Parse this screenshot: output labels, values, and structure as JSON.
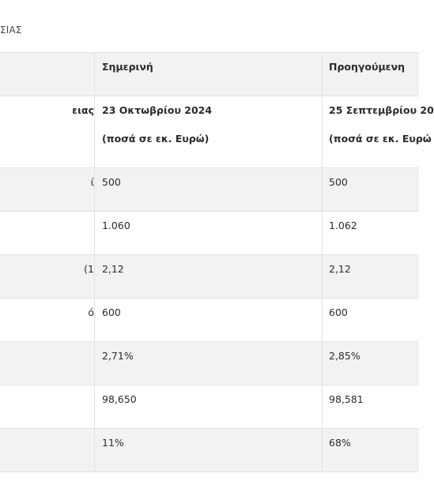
{
  "caption": "ΣΙΑΣ",
  "header_row": {
    "col0": "",
    "col1": "Σημερινή",
    "col2": "Προηγούμενη"
  },
  "date_row": {
    "col0": "ειας",
    "col1_date": "23 Οκτωβρίου 2024",
    "col1_unit": "(ποσά σε εκ. Ευρώ)",
    "col2_date": "25 Σεπτεμβρίου 20",
    "col2_unit": "(ποσά σε εκ. Ευρώ"
  },
  "rows": [
    {
      "label": "ί",
      "current": "500",
      "previous": "500"
    },
    {
      "label": "",
      "current": "1.060",
      "previous": "1.062"
    },
    {
      "label": "1)",
      "current": "2,12",
      "previous": "2,12"
    },
    {
      "label": "ό",
      "current": "600",
      "previous": "600"
    },
    {
      "label": "",
      "current": "2,71%",
      "previous": "2,85%"
    },
    {
      "label": "",
      "current": "98,650",
      "previous": "98,581"
    },
    {
      "label": "",
      "current": "11%",
      "previous": "68%"
    }
  ]
}
